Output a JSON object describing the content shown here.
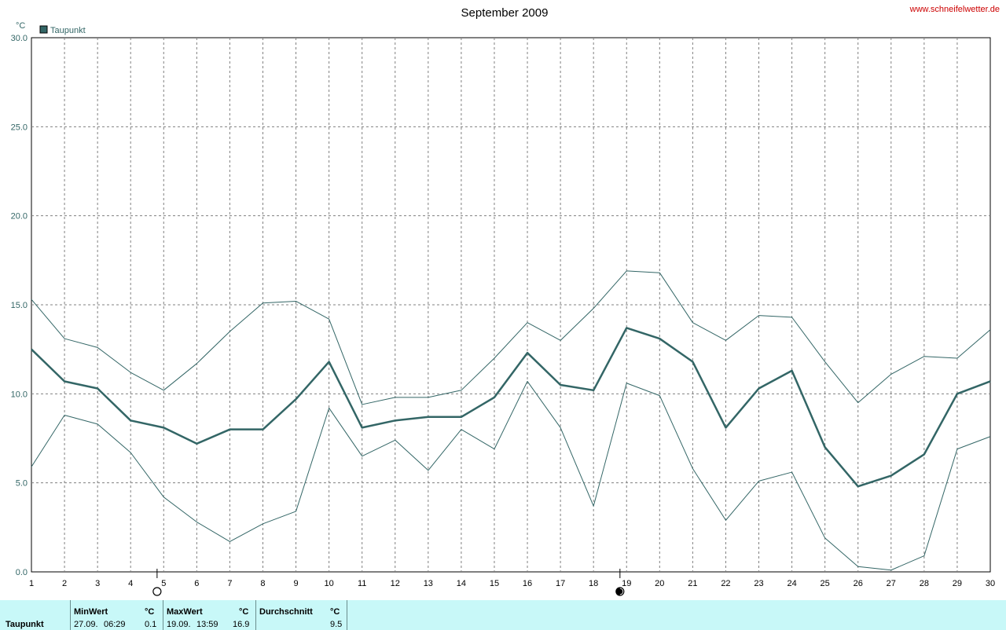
{
  "header": {
    "title": "September 2009",
    "website": "www.schneifelwetter.de",
    "unit": "°C"
  },
  "colors": {
    "series": "#336666",
    "site_link": "#cc0000",
    "stats_background": "#c8f8f8",
    "grid": "#808080"
  },
  "chart_data": {
    "type": "line",
    "title": "September 2009",
    "ylabel": "°C",
    "xlabel": "",
    "ylim": [
      0,
      30
    ],
    "xlim": [
      1,
      30
    ],
    "y_ticks": [
      "0.0",
      "5.0",
      "10.0",
      "15.0",
      "20.0",
      "25.0",
      "30.0"
    ],
    "x": [
      1,
      2,
      3,
      4,
      5,
      6,
      7,
      8,
      9,
      10,
      11,
      12,
      13,
      14,
      15,
      16,
      17,
      18,
      19,
      20,
      21,
      22,
      23,
      24,
      25,
      26,
      27,
      28,
      29,
      30
    ],
    "grid": true,
    "legend_position": "top-left",
    "moon_phases": [
      {
        "day": 4.8,
        "phase": "full-moon"
      },
      {
        "day": 18.8,
        "phase": "new-moon"
      }
    ],
    "series": [
      {
        "name": "Taupunkt",
        "role": "average",
        "values": [
          12.5,
          10.7,
          10.3,
          8.5,
          8.1,
          7.2,
          8.0,
          8.0,
          9.7,
          11.8,
          8.1,
          8.5,
          8.7,
          8.7,
          9.8,
          12.3,
          10.5,
          10.2,
          13.7,
          13.1,
          11.8,
          8.1,
          10.3,
          11.3,
          7.0,
          4.8,
          5.4,
          6.6,
          10.0,
          10.7
        ]
      },
      {
        "role": "maximum",
        "values": [
          15.3,
          13.1,
          12.6,
          11.2,
          10.2,
          11.7,
          13.5,
          15.1,
          15.2,
          14.2,
          9.4,
          9.8,
          9.8,
          10.2,
          12.0,
          14.0,
          13.0,
          14.8,
          16.9,
          16.8,
          14.0,
          13.0,
          14.4,
          14.3,
          11.8,
          9.5,
          11.1,
          12.1,
          12.0,
          13.6
        ]
      },
      {
        "role": "minimum",
        "values": [
          5.9,
          8.8,
          8.3,
          6.7,
          4.2,
          2.8,
          1.7,
          2.7,
          3.4,
          9.2,
          6.5,
          7.4,
          5.7,
          8.0,
          6.9,
          10.7,
          8.1,
          3.7,
          10.6,
          9.9,
          5.8,
          2.9,
          5.1,
          5.6,
          1.9,
          0.3,
          0.1,
          0.9,
          6.9,
          7.6
        ]
      }
    ]
  },
  "stats": {
    "row_label": "Taupunkt",
    "min": {
      "header": "MinWert",
      "unit": "°C",
      "date": "27.09.",
      "time": "06:29",
      "value": "0.1"
    },
    "max": {
      "header": "MaxWert",
      "unit": "°C",
      "date": "19.09.",
      "time": "13:59",
      "value": "16.9"
    },
    "avg": {
      "header": "Durchschnitt",
      "unit": "°C",
      "value": "9.5"
    }
  }
}
